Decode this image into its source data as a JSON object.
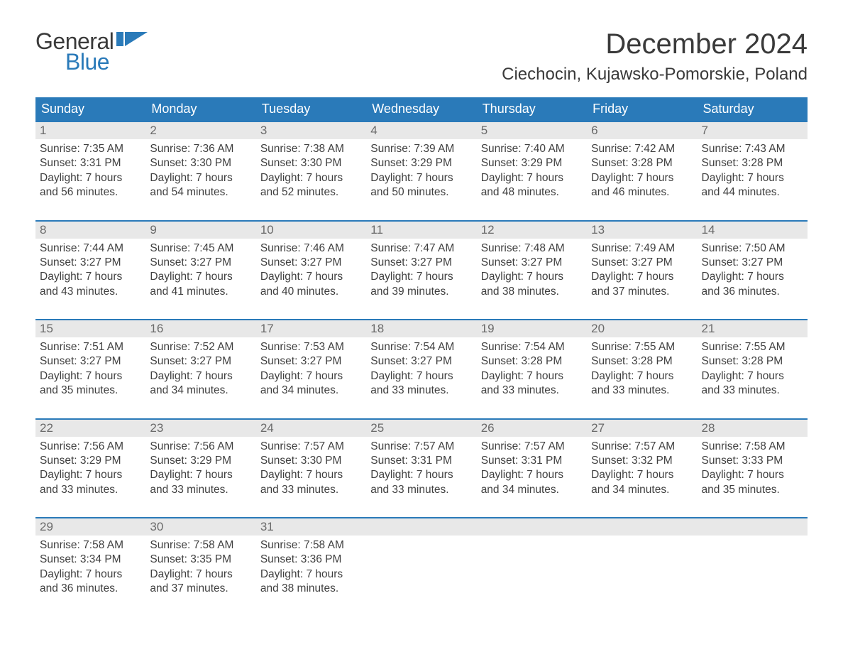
{
  "logo": {
    "text1": "General",
    "text2": "Blue",
    "flag_color": "#2a7ab9",
    "text1_color": "#3a3a3a"
  },
  "title": "December 2024",
  "location": "Ciechocin, Kujawsko-Pomorskie, Poland",
  "colors": {
    "header_bg": "#2a7ab9",
    "header_fg": "#ffffff",
    "daynum_bg": "#e8e8e8",
    "daynum_fg": "#6a6a6a",
    "body_fg": "#404040",
    "week_border": "#2a7ab9",
    "page_bg": "#ffffff"
  },
  "typography": {
    "title_fontsize": 40,
    "location_fontsize": 24,
    "dow_fontsize": 18,
    "daynum_fontsize": 17,
    "body_fontsize": 15.5
  },
  "days_of_week": [
    "Sunday",
    "Monday",
    "Tuesday",
    "Wednesday",
    "Thursday",
    "Friday",
    "Saturday"
  ],
  "weeks": [
    [
      {
        "n": "1",
        "sunrise": "Sunrise: 7:35 AM",
        "sunset": "Sunset: 3:31 PM",
        "d1": "Daylight: 7 hours",
        "d2": "and 56 minutes."
      },
      {
        "n": "2",
        "sunrise": "Sunrise: 7:36 AM",
        "sunset": "Sunset: 3:30 PM",
        "d1": "Daylight: 7 hours",
        "d2": "and 54 minutes."
      },
      {
        "n": "3",
        "sunrise": "Sunrise: 7:38 AM",
        "sunset": "Sunset: 3:30 PM",
        "d1": "Daylight: 7 hours",
        "d2": "and 52 minutes."
      },
      {
        "n": "4",
        "sunrise": "Sunrise: 7:39 AM",
        "sunset": "Sunset: 3:29 PM",
        "d1": "Daylight: 7 hours",
        "d2": "and 50 minutes."
      },
      {
        "n": "5",
        "sunrise": "Sunrise: 7:40 AM",
        "sunset": "Sunset: 3:29 PM",
        "d1": "Daylight: 7 hours",
        "d2": "and 48 minutes."
      },
      {
        "n": "6",
        "sunrise": "Sunrise: 7:42 AM",
        "sunset": "Sunset: 3:28 PM",
        "d1": "Daylight: 7 hours",
        "d2": "and 46 minutes."
      },
      {
        "n": "7",
        "sunrise": "Sunrise: 7:43 AM",
        "sunset": "Sunset: 3:28 PM",
        "d1": "Daylight: 7 hours",
        "d2": "and 44 minutes."
      }
    ],
    [
      {
        "n": "8",
        "sunrise": "Sunrise: 7:44 AM",
        "sunset": "Sunset: 3:27 PM",
        "d1": "Daylight: 7 hours",
        "d2": "and 43 minutes."
      },
      {
        "n": "9",
        "sunrise": "Sunrise: 7:45 AM",
        "sunset": "Sunset: 3:27 PM",
        "d1": "Daylight: 7 hours",
        "d2": "and 41 minutes."
      },
      {
        "n": "10",
        "sunrise": "Sunrise: 7:46 AM",
        "sunset": "Sunset: 3:27 PM",
        "d1": "Daylight: 7 hours",
        "d2": "and 40 minutes."
      },
      {
        "n": "11",
        "sunrise": "Sunrise: 7:47 AM",
        "sunset": "Sunset: 3:27 PM",
        "d1": "Daylight: 7 hours",
        "d2": "and 39 minutes."
      },
      {
        "n": "12",
        "sunrise": "Sunrise: 7:48 AM",
        "sunset": "Sunset: 3:27 PM",
        "d1": "Daylight: 7 hours",
        "d2": "and 38 minutes."
      },
      {
        "n": "13",
        "sunrise": "Sunrise: 7:49 AM",
        "sunset": "Sunset: 3:27 PM",
        "d1": "Daylight: 7 hours",
        "d2": "and 37 minutes."
      },
      {
        "n": "14",
        "sunrise": "Sunrise: 7:50 AM",
        "sunset": "Sunset: 3:27 PM",
        "d1": "Daylight: 7 hours",
        "d2": "and 36 minutes."
      }
    ],
    [
      {
        "n": "15",
        "sunrise": "Sunrise: 7:51 AM",
        "sunset": "Sunset: 3:27 PM",
        "d1": "Daylight: 7 hours",
        "d2": "and 35 minutes."
      },
      {
        "n": "16",
        "sunrise": "Sunrise: 7:52 AM",
        "sunset": "Sunset: 3:27 PM",
        "d1": "Daylight: 7 hours",
        "d2": "and 34 minutes."
      },
      {
        "n": "17",
        "sunrise": "Sunrise: 7:53 AM",
        "sunset": "Sunset: 3:27 PM",
        "d1": "Daylight: 7 hours",
        "d2": "and 34 minutes."
      },
      {
        "n": "18",
        "sunrise": "Sunrise: 7:54 AM",
        "sunset": "Sunset: 3:27 PM",
        "d1": "Daylight: 7 hours",
        "d2": "and 33 minutes."
      },
      {
        "n": "19",
        "sunrise": "Sunrise: 7:54 AM",
        "sunset": "Sunset: 3:28 PM",
        "d1": "Daylight: 7 hours",
        "d2": "and 33 minutes."
      },
      {
        "n": "20",
        "sunrise": "Sunrise: 7:55 AM",
        "sunset": "Sunset: 3:28 PM",
        "d1": "Daylight: 7 hours",
        "d2": "and 33 minutes."
      },
      {
        "n": "21",
        "sunrise": "Sunrise: 7:55 AM",
        "sunset": "Sunset: 3:28 PM",
        "d1": "Daylight: 7 hours",
        "d2": "and 33 minutes."
      }
    ],
    [
      {
        "n": "22",
        "sunrise": "Sunrise: 7:56 AM",
        "sunset": "Sunset: 3:29 PM",
        "d1": "Daylight: 7 hours",
        "d2": "and 33 minutes."
      },
      {
        "n": "23",
        "sunrise": "Sunrise: 7:56 AM",
        "sunset": "Sunset: 3:29 PM",
        "d1": "Daylight: 7 hours",
        "d2": "and 33 minutes."
      },
      {
        "n": "24",
        "sunrise": "Sunrise: 7:57 AM",
        "sunset": "Sunset: 3:30 PM",
        "d1": "Daylight: 7 hours",
        "d2": "and 33 minutes."
      },
      {
        "n": "25",
        "sunrise": "Sunrise: 7:57 AM",
        "sunset": "Sunset: 3:31 PM",
        "d1": "Daylight: 7 hours",
        "d2": "and 33 minutes."
      },
      {
        "n": "26",
        "sunrise": "Sunrise: 7:57 AM",
        "sunset": "Sunset: 3:31 PM",
        "d1": "Daylight: 7 hours",
        "d2": "and 34 minutes."
      },
      {
        "n": "27",
        "sunrise": "Sunrise: 7:57 AM",
        "sunset": "Sunset: 3:32 PM",
        "d1": "Daylight: 7 hours",
        "d2": "and 34 minutes."
      },
      {
        "n": "28",
        "sunrise": "Sunrise: 7:58 AM",
        "sunset": "Sunset: 3:33 PM",
        "d1": "Daylight: 7 hours",
        "d2": "and 35 minutes."
      }
    ],
    [
      {
        "n": "29",
        "sunrise": "Sunrise: 7:58 AM",
        "sunset": "Sunset: 3:34 PM",
        "d1": "Daylight: 7 hours",
        "d2": "and 36 minutes."
      },
      {
        "n": "30",
        "sunrise": "Sunrise: 7:58 AM",
        "sunset": "Sunset: 3:35 PM",
        "d1": "Daylight: 7 hours",
        "d2": "and 37 minutes."
      },
      {
        "n": "31",
        "sunrise": "Sunrise: 7:58 AM",
        "sunset": "Sunset: 3:36 PM",
        "d1": "Daylight: 7 hours",
        "d2": "and 38 minutes."
      },
      {
        "empty": true
      },
      {
        "empty": true
      },
      {
        "empty": true
      },
      {
        "empty": true
      }
    ]
  ]
}
